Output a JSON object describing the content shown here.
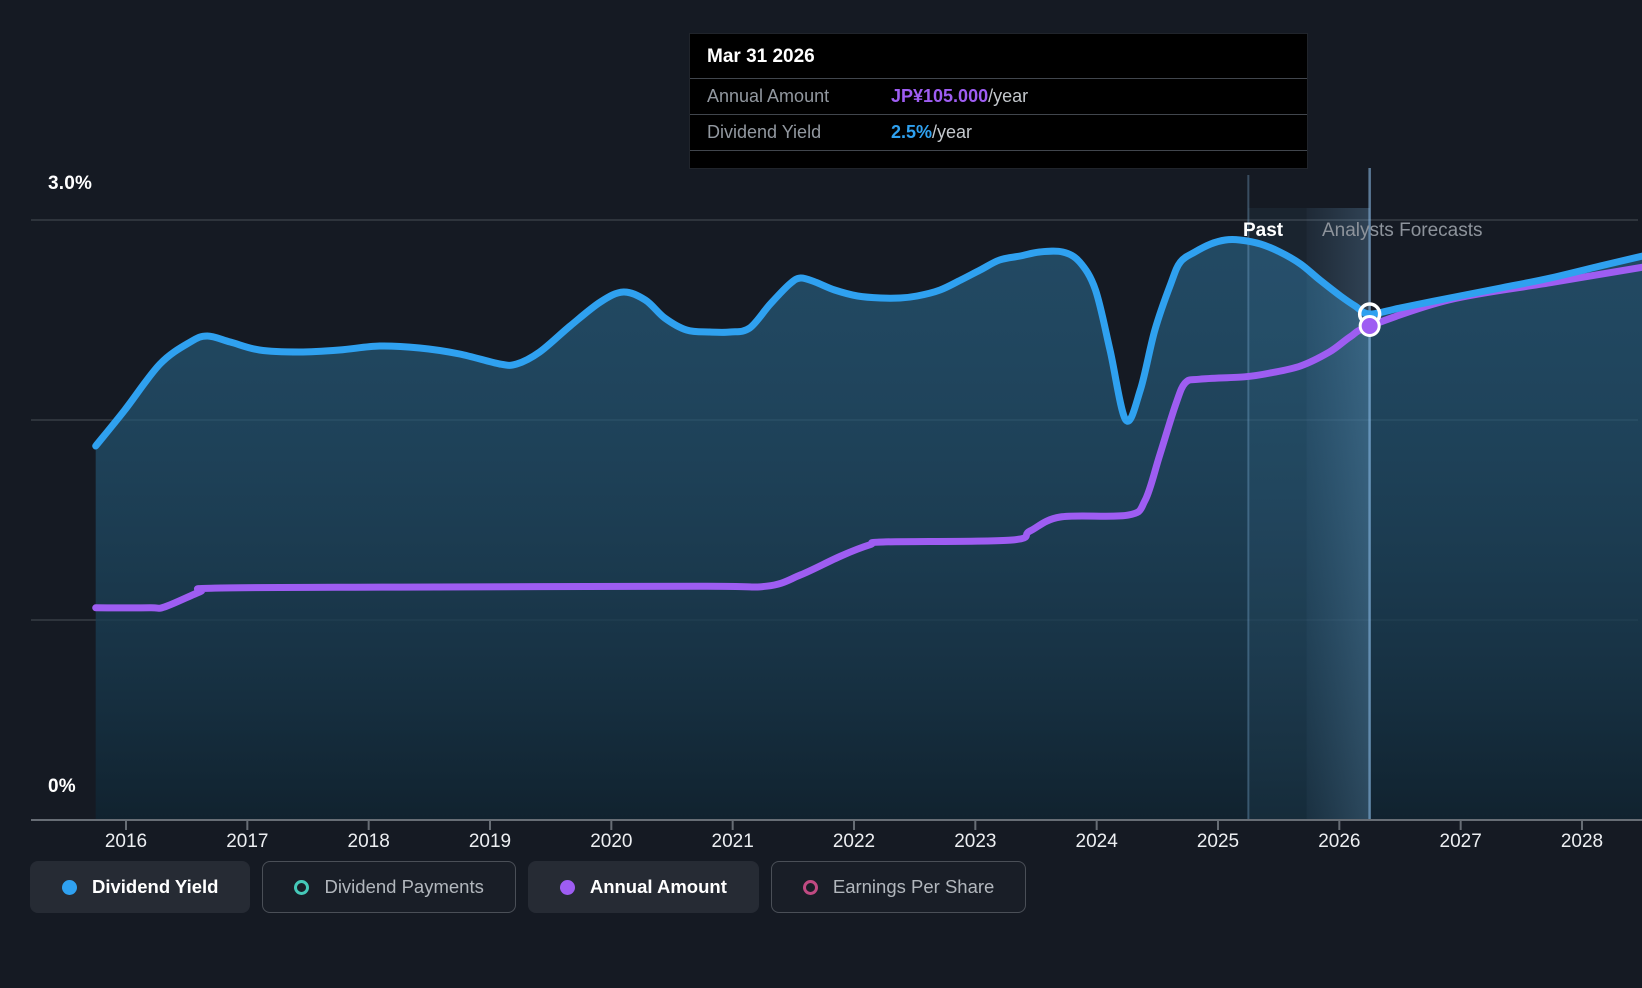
{
  "colors": {
    "background": "#151a23",
    "dividend_yield_blue": "#2fa1f0",
    "annual_amount_purple": "#9e5df2",
    "dividend_payments_teal": "#45c8b8",
    "eps_pink": "#c04a82",
    "gridline": "#363c45",
    "axis": "#676d75",
    "tooltip_bg": "#000000"
  },
  "tooltip": {
    "title": "Mar 31 2026",
    "rows": [
      {
        "label": "Annual Amount",
        "value": "JP¥105.000",
        "suffix": "/year",
        "color": "#9e5df2"
      },
      {
        "label": "Dividend Yield",
        "value": "2.5%",
        "suffix": "/year",
        "color": "#2fa1f0"
      }
    ]
  },
  "region_labels": {
    "past": "Past",
    "forecast": "Analysts Forecasts"
  },
  "axis": {
    "y_top_label": "3.0%",
    "y_bottom_label": "0%",
    "x_labels": [
      "2016",
      "2017",
      "2018",
      "2019",
      "2020",
      "2021",
      "2022",
      "2023",
      "2024",
      "2025",
      "2026",
      "2027",
      "2028"
    ]
  },
  "legend": {
    "items": [
      {
        "label": "Dividend Yield",
        "marker": "dot",
        "color": "#2fa1f0",
        "active": true
      },
      {
        "label": "Dividend Payments",
        "marker": "ring",
        "color": "#45c8b8",
        "active": false
      },
      {
        "label": "Annual Amount",
        "marker": "dot",
        "color": "#9e5df2",
        "active": true
      },
      {
        "label": "Earnings Per Share",
        "marker": "ring",
        "color": "#c04a82",
        "active": false
      }
    ]
  },
  "chart_data": {
    "type": "area",
    "title": "Dividend yield history and analysts forecasts",
    "x_range": [
      2015.75,
      2028.5
    ],
    "y_axis": {
      "min": 0,
      "max": 3.0,
      "unit": "%",
      "gridlines_pct": [
        3.0,
        2.0,
        1.0
      ],
      "labeled": [
        "3.0%",
        "0%"
      ]
    },
    "x_ticks": [
      2016,
      2017,
      2018,
      2019,
      2020,
      2021,
      2022,
      2023,
      2024,
      2025,
      2026,
      2027,
      2028
    ],
    "fiscal_year_end_marker": 2025.25,
    "past_forecast_boundary": 2025.73,
    "hover": {
      "date": "Mar 31 2026",
      "x": 2026.25,
      "dividend_yield_pct": 2.5,
      "annual_amount_jpy": 105.0
    },
    "series": [
      {
        "name": "Dividend Yield",
        "unit": "%",
        "color": "#2fa1f0",
        "style": "line+area",
        "points": [
          [
            2015.75,
            1.87
          ],
          [
            2015.99,
            2.05
          ],
          [
            2016.28,
            2.28
          ],
          [
            2016.53,
            2.39
          ],
          [
            2016.67,
            2.42
          ],
          [
            2016.86,
            2.39
          ],
          [
            2017.1,
            2.35
          ],
          [
            2017.43,
            2.34
          ],
          [
            2017.76,
            2.35
          ],
          [
            2018.09,
            2.37
          ],
          [
            2018.42,
            2.36
          ],
          [
            2018.75,
            2.33
          ],
          [
            2019.08,
            2.28
          ],
          [
            2019.22,
            2.28
          ],
          [
            2019.41,
            2.34
          ],
          [
            2019.66,
            2.47
          ],
          [
            2019.91,
            2.59
          ],
          [
            2020.1,
            2.64
          ],
          [
            2020.28,
            2.6
          ],
          [
            2020.44,
            2.51
          ],
          [
            2020.62,
            2.45
          ],
          [
            2020.81,
            2.44
          ],
          [
            2020.98,
            2.44
          ],
          [
            2021.14,
            2.46
          ],
          [
            2021.31,
            2.58
          ],
          [
            2021.47,
            2.68
          ],
          [
            2021.56,
            2.71
          ],
          [
            2021.68,
            2.69
          ],
          [
            2021.84,
            2.65
          ],
          [
            2022.03,
            2.62
          ],
          [
            2022.22,
            2.61
          ],
          [
            2022.38,
            2.61
          ],
          [
            2022.52,
            2.62
          ],
          [
            2022.71,
            2.65
          ],
          [
            2022.88,
            2.7
          ],
          [
            2023.04,
            2.75
          ],
          [
            2023.2,
            2.8
          ],
          [
            2023.37,
            2.82
          ],
          [
            2023.53,
            2.84
          ],
          [
            2023.72,
            2.84
          ],
          [
            2023.86,
            2.79
          ],
          [
            2023.99,
            2.65
          ],
          [
            2024.11,
            2.35
          ],
          [
            2024.24,
            2.0
          ],
          [
            2024.36,
            2.15
          ],
          [
            2024.48,
            2.45
          ],
          [
            2024.61,
            2.68
          ],
          [
            2024.69,
            2.79
          ],
          [
            2024.81,
            2.84
          ],
          [
            2024.94,
            2.88
          ],
          [
            2025.06,
            2.9
          ],
          [
            2025.18,
            2.9
          ],
          [
            2025.35,
            2.88
          ],
          [
            2025.51,
            2.84
          ],
          [
            2025.68,
            2.78
          ],
          [
            2025.84,
            2.7
          ],
          [
            2026.01,
            2.62
          ],
          [
            2026.13,
            2.57
          ],
          [
            2026.25,
            2.53
          ],
          [
            2026.5,
            2.56
          ],
          [
            2026.91,
            2.61
          ],
          [
            2027.33,
            2.66
          ],
          [
            2027.74,
            2.71
          ],
          [
            2028.15,
            2.77
          ],
          [
            2028.5,
            2.82
          ]
        ]
      },
      {
        "name": "Annual Amount",
        "unit": "JP¥/year",
        "color": "#9e5df2",
        "style": "line",
        "points": [
          [
            2015.75,
            45.1
          ],
          [
            2016.2,
            45.1
          ],
          [
            2016.32,
            45.3
          ],
          [
            2016.61,
            48.5
          ],
          [
            2016.73,
            49.3
          ],
          [
            2018.26,
            49.5
          ],
          [
            2020.73,
            49.7
          ],
          [
            2021.28,
            49.7
          ],
          [
            2021.56,
            52.1
          ],
          [
            2021.89,
            56.1
          ],
          [
            2022.13,
            58.5
          ],
          [
            2022.26,
            59.1
          ],
          [
            2023.29,
            59.5
          ],
          [
            2023.45,
            61.4
          ],
          [
            2023.7,
            64.4
          ],
          [
            2024.26,
            64.8
          ],
          [
            2024.4,
            68.0
          ],
          [
            2024.52,
            77.6
          ],
          [
            2024.65,
            88.2
          ],
          [
            2024.73,
            92.9
          ],
          [
            2024.85,
            93.7
          ],
          [
            2025.22,
            94.2
          ],
          [
            2025.43,
            95.0
          ],
          [
            2025.68,
            96.5
          ],
          [
            2025.92,
            99.5
          ],
          [
            2026.09,
            102.7
          ],
          [
            2026.25,
            105.0
          ],
          [
            2026.91,
            110.6
          ],
          [
            2027.74,
            114.2
          ],
          [
            2028.5,
            117.5
          ]
        ]
      }
    ]
  }
}
